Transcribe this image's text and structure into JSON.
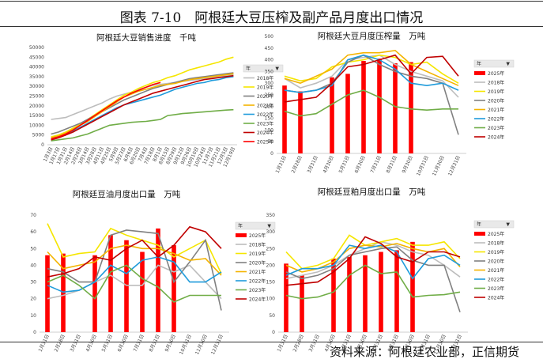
{
  "figure_title": "图表 7-10　阿根廷大豆压榨及副产品月度出口情况",
  "source": "资料来源：阿根廷农业部，正信期货",
  "legend_header": "年",
  "chart_data": [
    {
      "type": "line",
      "title": "阿根廷大豆销售进度　千吨",
      "x": [
        "1月3日",
        "1月17日",
        "1月31日",
        "2月14日",
        "2月28日",
        "3月14日",
        "3月28日",
        "4月11日",
        "4月25日",
        "5月9日",
        "5月23日",
        "6月6日",
        "6月20日",
        "7月4日",
        "7月18日",
        "8月1日",
        "8月15日",
        "8月29日",
        "9月12日",
        "9月26日",
        "10月10日",
        "10月24日",
        "11月7日",
        "11月21日",
        "12月5日",
        "12月19日"
      ],
      "ylim": [
        0,
        50000
      ],
      "yticks": [
        0,
        5000,
        10000,
        15000,
        20000,
        25000,
        30000,
        35000,
        40000,
        45000,
        50000
      ],
      "series": [
        {
          "name": "2018年",
          "color": "#bdbdbd",
          "values": [
            13000,
            13500,
            14000,
            15500,
            17000,
            18500,
            20000,
            21500,
            23500,
            25000,
            26000,
            27000,
            28500,
            29500,
            30500,
            31000,
            31500,
            32000,
            32500,
            33000,
            33500,
            34000,
            34500,
            35000,
            35500,
            36000
          ]
        },
        {
          "name": "2019年",
          "color": "#f5e600",
          "values": [
            4000,
            5000,
            6500,
            8500,
            10500,
            13000,
            15500,
            18000,
            20500,
            23000,
            25500,
            27000,
            29000,
            30500,
            32000,
            33000,
            34500,
            35500,
            37000,
            38500,
            39500,
            40500,
            41500,
            42500,
            44000,
            45000
          ]
        },
        {
          "name": "2020年",
          "color": "#808080",
          "values": [
            5500,
            6500,
            8000,
            9500,
            11000,
            13000,
            15000,
            17000,
            19000,
            21000,
            23000,
            24500,
            26000,
            27500,
            29000,
            30000,
            31000,
            32000,
            33000,
            34000,
            34500,
            35000,
            35500,
            36000,
            36500,
            37000
          ]
        },
        {
          "name": "2021年",
          "color": "#f4b400",
          "values": [
            3500,
            4500,
            6000,
            8000,
            10000,
            12000,
            14500,
            17000,
            19500,
            22000,
            24500,
            26000,
            27500,
            28500,
            29500,
            30500,
            31000,
            31500,
            32500,
            33500,
            34000,
            34500,
            35000,
            35500,
            36000,
            36500
          ]
        },
        {
          "name": "2022年",
          "color": "#1f9bdb",
          "values": [
            3000,
            4000,
            5000,
            7000,
            9000,
            11000,
            13000,
            15000,
            17000,
            19000,
            20500,
            21500,
            22500,
            23500,
            24500,
            25500,
            27000,
            28500,
            29500,
            30500,
            31500,
            32000,
            33000,
            33500,
            34500,
            35000
          ]
        },
        {
          "name": "2023年",
          "color": "#70ad47",
          "values": [
            2000,
            2500,
            3000,
            3500,
            4500,
            5500,
            7000,
            8500,
            10000,
            10500,
            11000,
            11500,
            11800,
            12000,
            12500,
            13000,
            15000,
            15500,
            16000,
            16300,
            16600,
            16900,
            17200,
            17500,
            17800,
            18000
          ]
        },
        {
          "name": "2024年",
          "color": "#c00000",
          "values": [
            2500,
            3500,
            5000,
            6500,
            8500,
            10500,
            12500,
            14500,
            16500,
            18500,
            20500,
            22000,
            23500,
            25000,
            26500,
            27500,
            28500,
            29500,
            30500,
            31500,
            32500,
            33500,
            34000,
            34500,
            35000,
            35500
          ]
        },
        {
          "name": "2025年",
          "color": "#ff0000",
          "values": [
            3000,
            4000,
            5500,
            7500,
            10000,
            12500,
            15000,
            17500,
            20000,
            22500,
            24500,
            26500,
            28000,
            29500,
            31000,
            32000,
            null,
            null,
            null,
            null,
            null,
            null,
            null,
            null,
            null,
            null
          ]
        }
      ]
    },
    {
      "type": "bar+line",
      "title": "阿根廷大豆月度压榨量　万吨",
      "categories": [
        "1月31日",
        "2月28日",
        "3月31日",
        "4月30日",
        "5月31日",
        "6月30日",
        "7月31日",
        "8月31日",
        "9月30日",
        "10月31日",
        "11月30日",
        "12月31日"
      ],
      "ylim": [
        0,
        500
      ],
      "yticks": [
        0,
        50,
        100,
        150,
        200,
        250,
        300,
        350,
        400,
        450,
        500
      ],
      "bar": {
        "name": "2025年",
        "color": "#ff0000",
        "values": [
          290,
          265,
          null,
          325,
          340,
          395,
          405,
          385,
          390,
          null,
          null,
          null
        ]
      },
      "series": [
        {
          "name": "2018年",
          "color": "#bdbdbd",
          "values": [
            320,
            280,
            300,
            330,
            400,
            410,
            420,
            380,
            350,
            330,
            310,
            240
          ]
        },
        {
          "name": "2019年",
          "color": "#f5e600",
          "values": [
            330,
            310,
            320,
            370,
            390,
            400,
            420,
            410,
            380,
            390,
            340,
            300
          ]
        },
        {
          "name": "2020年",
          "color": "#808080",
          "values": [
            270,
            260,
            270,
            300,
            390,
            420,
            380,
            350,
            330,
            320,
            300,
            80
          ]
        },
        {
          "name": "2021年",
          "color": "#f4b400",
          "values": [
            320,
            300,
            330,
            360,
            420,
            430,
            430,
            440,
            380,
            350,
            320,
            290
          ]
        },
        {
          "name": "2022年",
          "color": "#1f9bdb",
          "values": [
            270,
            260,
            270,
            290,
            400,
            420,
            400,
            360,
            300,
            290,
            300,
            270
          ]
        },
        {
          "name": "2023年",
          "color": "#70ad47",
          "values": [
            180,
            160,
            170,
            210,
            250,
            270,
            240,
            200,
            190,
            185,
            190,
            190
          ]
        },
        {
          "name": "2024年",
          "color": "#c00000",
          "values": [
            220,
            230,
            240,
            300,
            370,
            380,
            400,
            420,
            340,
            410,
            415,
            330
          ]
        }
      ]
    },
    {
      "type": "bar+line",
      "title": "阿根廷豆油月度出口量　万吨",
      "categories": [
        "1月31日",
        "2月28日",
        "3月31日",
        "4月30日",
        "5月31日",
        "6月30日",
        "7月31日",
        "8月31日",
        "9月30日",
        "10月31日",
        "11月30日",
        "12月31日"
      ],
      "ylim": [
        0,
        70
      ],
      "yticks": [
        0,
        10,
        20,
        30,
        40,
        50,
        60,
        70
      ],
      "bar": {
        "name": "2025年",
        "color": "#ff0000",
        "values": [
          46,
          47,
          null,
          46,
          58,
          55,
          48,
          62,
          52,
          null,
          null,
          null
        ]
      },
      "series": [
        {
          "name": "2018年",
          "color": "#bdbdbd",
          "values": [
            20,
            22,
            25,
            30,
            34,
            28,
            28,
            40,
            36,
            40,
            30,
            20
          ]
        },
        {
          "name": "2019年",
          "color": "#f5e600",
          "values": [
            65,
            45,
            47,
            48,
            62,
            58,
            55,
            52,
            45,
            50,
            55,
            35
          ]
        },
        {
          "name": "2020年",
          "color": "#808080",
          "values": [
            38,
            36,
            30,
            30,
            58,
            61,
            60,
            59,
            30,
            42,
            55,
            13
          ]
        },
        {
          "name": "2021年",
          "color": "#f4b400",
          "values": [
            48,
            38,
            40,
            42,
            50,
            52,
            50,
            50,
            47,
            43,
            44,
            34
          ]
        },
        {
          "name": "2022年",
          "color": "#1f9bdb",
          "values": [
            28,
            24,
            25,
            30,
            40,
            35,
            43,
            45,
            42,
            30,
            30,
            36
          ]
        },
        {
          "name": "2023年",
          "color": "#70ad47",
          "values": [
            30,
            34,
            28,
            20,
            36,
            40,
            32,
            27,
            18,
            22,
            22,
            22
          ]
        },
        {
          "name": "2024年",
          "color": "#c00000",
          "values": [
            33,
            35,
            38,
            45,
            43,
            50,
            55,
            45,
            52,
            63,
            60,
            50
          ]
        }
      ]
    },
    {
      "type": "bar+line",
      "title": "阿根廷豆粕月度出口量　万吨",
      "categories": [
        "1月31日",
        "2月28日",
        "3月31日",
        "4月30日",
        "5月31日",
        "6月30日",
        "7月31日",
        "8月31日",
        "9月30日",
        "10月31日",
        "11月30日",
        "12月31日"
      ],
      "ylim": [
        0,
        350
      ],
      "yticks": [
        0,
        50,
        100,
        150,
        200,
        250,
        300,
        350
      ],
      "bar": {
        "name": "2025年",
        "color": "#ff0000",
        "values": [
          205,
          170,
          null,
          220,
          225,
          230,
          240,
          245,
          270,
          null,
          null,
          null
        ]
      },
      "series": [
        {
          "name": "2018年",
          "color": "#bdbdbd",
          "values": [
            160,
            170,
            180,
            200,
            230,
            250,
            270,
            260,
            240,
            230,
            200,
            165
          ]
        },
        {
          "name": "2019年",
          "color": "#f5e600",
          "values": [
            240,
            190,
            200,
            220,
            290,
            260,
            270,
            280,
            260,
            260,
            270,
            220
          ]
        },
        {
          "name": "2020年",
          "color": "#808080",
          "values": [
            180,
            160,
            170,
            190,
            230,
            240,
            250,
            255,
            215,
            200,
            200,
            60
          ]
        },
        {
          "name": "2021年",
          "color": "#f4b400",
          "values": [
            200,
            180,
            190,
            210,
            250,
            260,
            255,
            265,
            250,
            240,
            250,
            195
          ]
        },
        {
          "name": "2022年",
          "color": "#1f9bdb",
          "values": [
            170,
            190,
            190,
            200,
            260,
            250,
            260,
            240,
            160,
            220,
            230,
            200
          ]
        },
        {
          "name": "2023年",
          "color": "#70ad47",
          "values": [
            110,
            100,
            105,
            120,
            170,
            200,
            175,
            180,
            105,
            110,
            112,
            120
          ]
        },
        {
          "name": "2024年",
          "color": "#c00000",
          "values": [
            140,
            145,
            150,
            180,
            220,
            285,
            265,
            225,
            210,
            240,
            240,
            225
          ]
        }
      ]
    }
  ]
}
